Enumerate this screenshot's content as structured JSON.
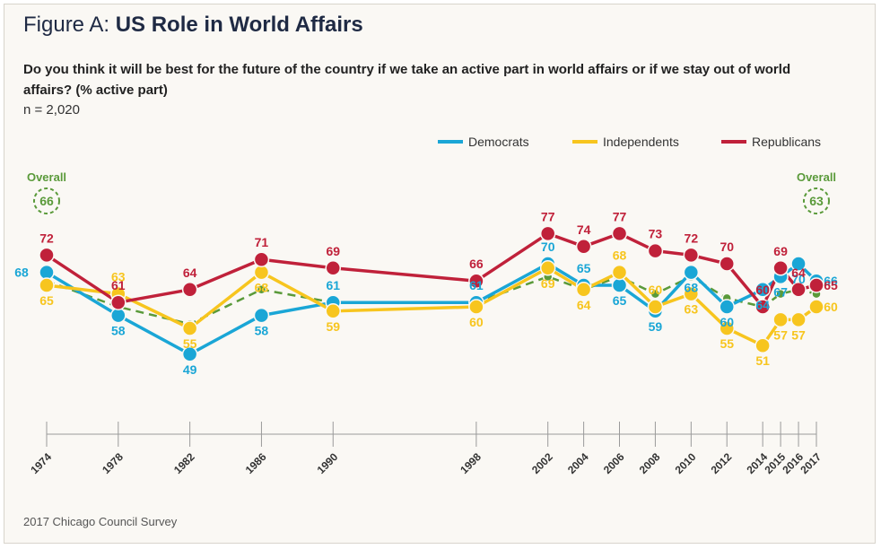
{
  "header": {
    "title_prefix": "Figure A: ",
    "title_bold": "US Role in World Affairs",
    "question": "Do you think it will be best for the future of the country if we take an active part in world affairs or if we stay out of world affairs? (% active part)",
    "sample": "n = 2,020"
  },
  "footer": {
    "source": "2017 Chicago Council Survey"
  },
  "chart_data": {
    "type": "line",
    "title": "US Role in World Affairs",
    "ylabel": "% active part",
    "x": [
      1974,
      1978,
      1982,
      1986,
      1990,
      1998,
      2002,
      2004,
      2006,
      2008,
      2010,
      2012,
      2014,
      2015,
      2016,
      2017
    ],
    "x_tick_labels": [
      "1974",
      "1978",
      "1982",
      "1986",
      "1990",
      "1998",
      "2002",
      "2004",
      "2006",
      "2008",
      "2010",
      "2012",
      "2014",
      "2015",
      "2016",
      "2017"
    ],
    "series": [
      {
        "name": "Democrats",
        "color": "#1aa6d6",
        "values": [
          68,
          58,
          49,
          58,
          61,
          61,
          70,
          65,
          65,
          59,
          68,
          60,
          64,
          67,
          70,
          66
        ]
      },
      {
        "name": "Independents",
        "color": "#f7c51e",
        "values": [
          65,
          63,
          55,
          68,
          59,
          60,
          69,
          64,
          68,
          60,
          63,
          55,
          51,
          57,
          57,
          60
        ]
      },
      {
        "name": "Republicans",
        "color": "#c0213a",
        "values": [
          72,
          61,
          64,
          71,
          69,
          66,
          77,
          74,
          77,
          73,
          72,
          70,
          60,
          69,
          64,
          65
        ]
      },
      {
        "name": "Overall",
        "color": "#5a9a3a",
        "dashed": true,
        "values": [
          66,
          60,
          56,
          64,
          61,
          61,
          67,
          64,
          67,
          63,
          67,
          62,
          60,
          63,
          64,
          63
        ]
      }
    ],
    "overall_badges": [
      {
        "label": "Overall",
        "value": "66"
      },
      {
        "label": "Overall",
        "value": "63"
      }
    ],
    "ylim": [
      40,
      80
    ],
    "legend": [
      "Democrats",
      "Independents",
      "Republicans"
    ],
    "legend_position": "top-right"
  }
}
